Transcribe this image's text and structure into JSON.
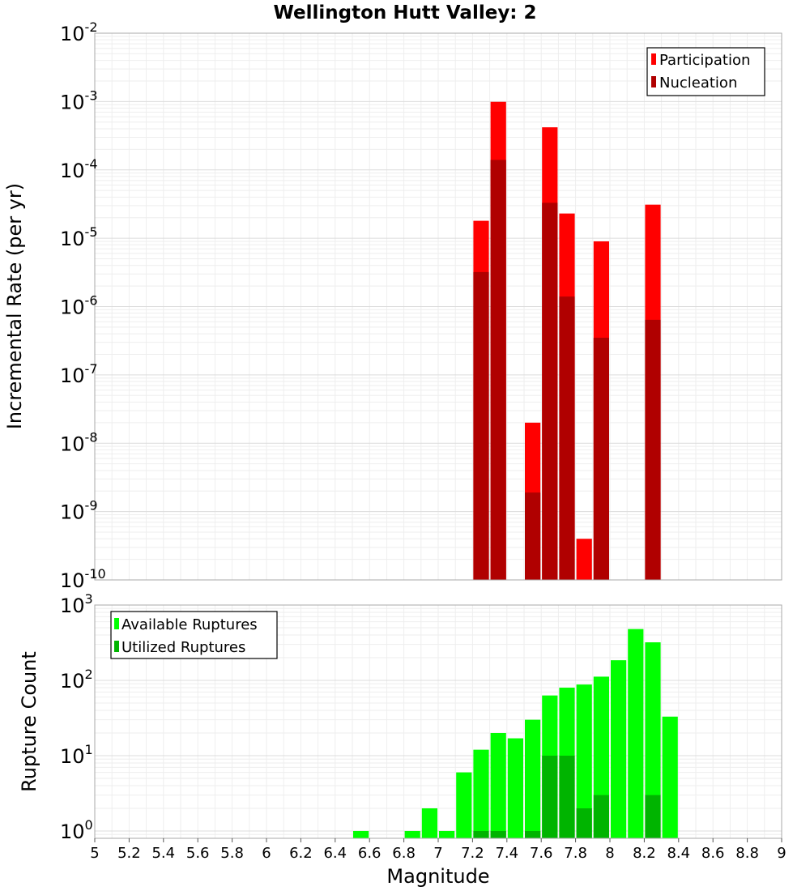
{
  "chart_data": [
    {
      "type": "bar",
      "title": "Wellington Hutt Valley: 2",
      "xlabel": "",
      "ylabel": "Incremental Rate (per yr)",
      "yscale": "log",
      "xlim": [
        5,
        9
      ],
      "ylim": [
        1e-10,
        0.01
      ],
      "grid": true,
      "legend_position": "top-right",
      "y_tick_labels": [
        {
          "base": "10",
          "exp": "-2"
        },
        {
          "base": "10",
          "exp": "-3"
        },
        {
          "base": "10",
          "exp": "-4"
        },
        {
          "base": "10",
          "exp": "-5"
        },
        {
          "base": "10",
          "exp": "-6"
        },
        {
          "base": "10",
          "exp": "-7"
        },
        {
          "base": "10",
          "exp": "-8"
        },
        {
          "base": "10",
          "exp": "-9"
        },
        {
          "base": "10",
          "exp": "-10"
        }
      ],
      "bar_width": 0.1,
      "series": [
        {
          "name": "Participation",
          "color": "#ff0000",
          "x": [
            7.25,
            7.35,
            7.55,
            7.65,
            7.75,
            7.85,
            7.95,
            8.25
          ],
          "values": [
            1.8e-05,
            0.00099,
            2e-08,
            0.00042,
            2.3e-05,
            4e-10,
            9e-06,
            3.1e-05
          ]
        },
        {
          "name": "Nucleation",
          "color": "#b00000",
          "x": [
            7.25,
            7.35,
            7.55,
            7.65,
            7.75,
            7.95,
            8.25
          ],
          "values": [
            3.2e-06,
            0.00014,
            1.9e-09,
            3.3e-05,
            1.4e-06,
            3.5e-07,
            6.4e-07
          ]
        }
      ]
    },
    {
      "type": "bar",
      "title": "",
      "xlabel": "Magnitude",
      "ylabel": "Rupture Count",
      "yscale": "log",
      "xlim": [
        5,
        9
      ],
      "ylim": [
        0.8,
        1000
      ],
      "grid": true,
      "legend_position": "top-left",
      "x_ticks": [
        "5",
        "5.2",
        "5.4",
        "5.6",
        "5.8",
        "6",
        "6.2",
        "6.4",
        "6.6",
        "6.8",
        "7",
        "7.2",
        "7.4",
        "7.6",
        "7.8",
        "8",
        "8.2",
        "8.4",
        "8.6",
        "8.8",
        "9"
      ],
      "y_tick_labels": [
        {
          "base": "10",
          "exp": "3"
        },
        {
          "base": "10",
          "exp": "2"
        },
        {
          "base": "10",
          "exp": "1"
        },
        {
          "base": "10",
          "exp": "0"
        }
      ],
      "bar_width": 0.1,
      "series": [
        {
          "name": "Available Ruptures",
          "color": "#00ff00",
          "x": [
            6.55,
            6.85,
            6.95,
            7.05,
            7.15,
            7.25,
            7.35,
            7.45,
            7.55,
            7.65,
            7.75,
            7.85,
            7.95,
            8.05,
            8.15,
            8.25,
            8.35
          ],
          "values": [
            1,
            1,
            2,
            1,
            6,
            12,
            20,
            17,
            30,
            63,
            80,
            88,
            112,
            185,
            480,
            320,
            33
          ]
        },
        {
          "name": "Utilized Ruptures",
          "color": "#00b400",
          "x": [
            7.25,
            7.35,
            7.55,
            7.65,
            7.75,
            7.85,
            7.95,
            8.25
          ],
          "values": [
            1,
            1,
            1,
            10,
            10,
            2,
            3,
            3
          ]
        }
      ]
    }
  ]
}
